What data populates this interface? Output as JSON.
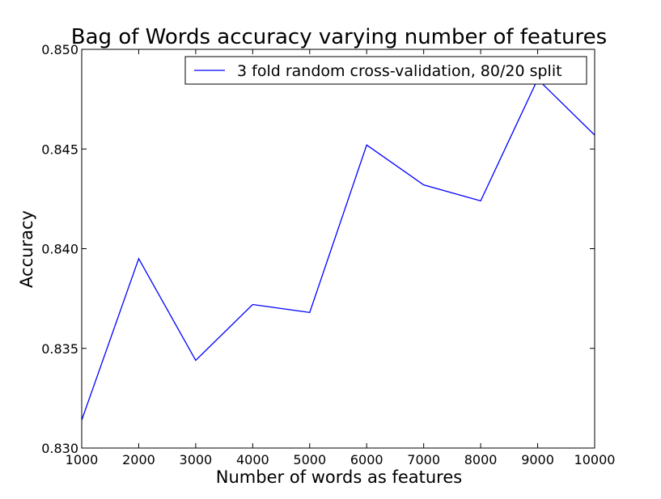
{
  "chart_data": {
    "type": "line",
    "title": "Bag of Words accuracy varying number of features",
    "xlabel": "Number of words as features",
    "ylabel": "Accuracy",
    "xlim": [
      1000,
      10000
    ],
    "ylim": [
      0.83,
      0.85
    ],
    "xticks": [
      1000,
      2000,
      3000,
      4000,
      5000,
      6000,
      7000,
      8000,
      9000,
      10000
    ],
    "xtick_labels": [
      "1000",
      "2000",
      "3000",
      "4000",
      "5000",
      "6000",
      "7000",
      "8000",
      "9000",
      "10000"
    ],
    "yticks": [
      0.83,
      0.835,
      0.84,
      0.845,
      0.85
    ],
    "ytick_labels": [
      "0.830",
      "0.835",
      "0.840",
      "0.845",
      "0.850"
    ],
    "grid": false,
    "legend_position": "top-right",
    "series": [
      {
        "name": "3 fold random cross-validation, 80/20 split",
        "color": "#0000ff",
        "x": [
          1000,
          2000,
          3000,
          4000,
          5000,
          6000,
          7000,
          8000,
          9000,
          10000
        ],
        "y": [
          0.8314,
          0.8395,
          0.8344,
          0.8372,
          0.8368,
          0.8452,
          0.8432,
          0.8424,
          0.8485,
          0.8457
        ]
      }
    ]
  }
}
